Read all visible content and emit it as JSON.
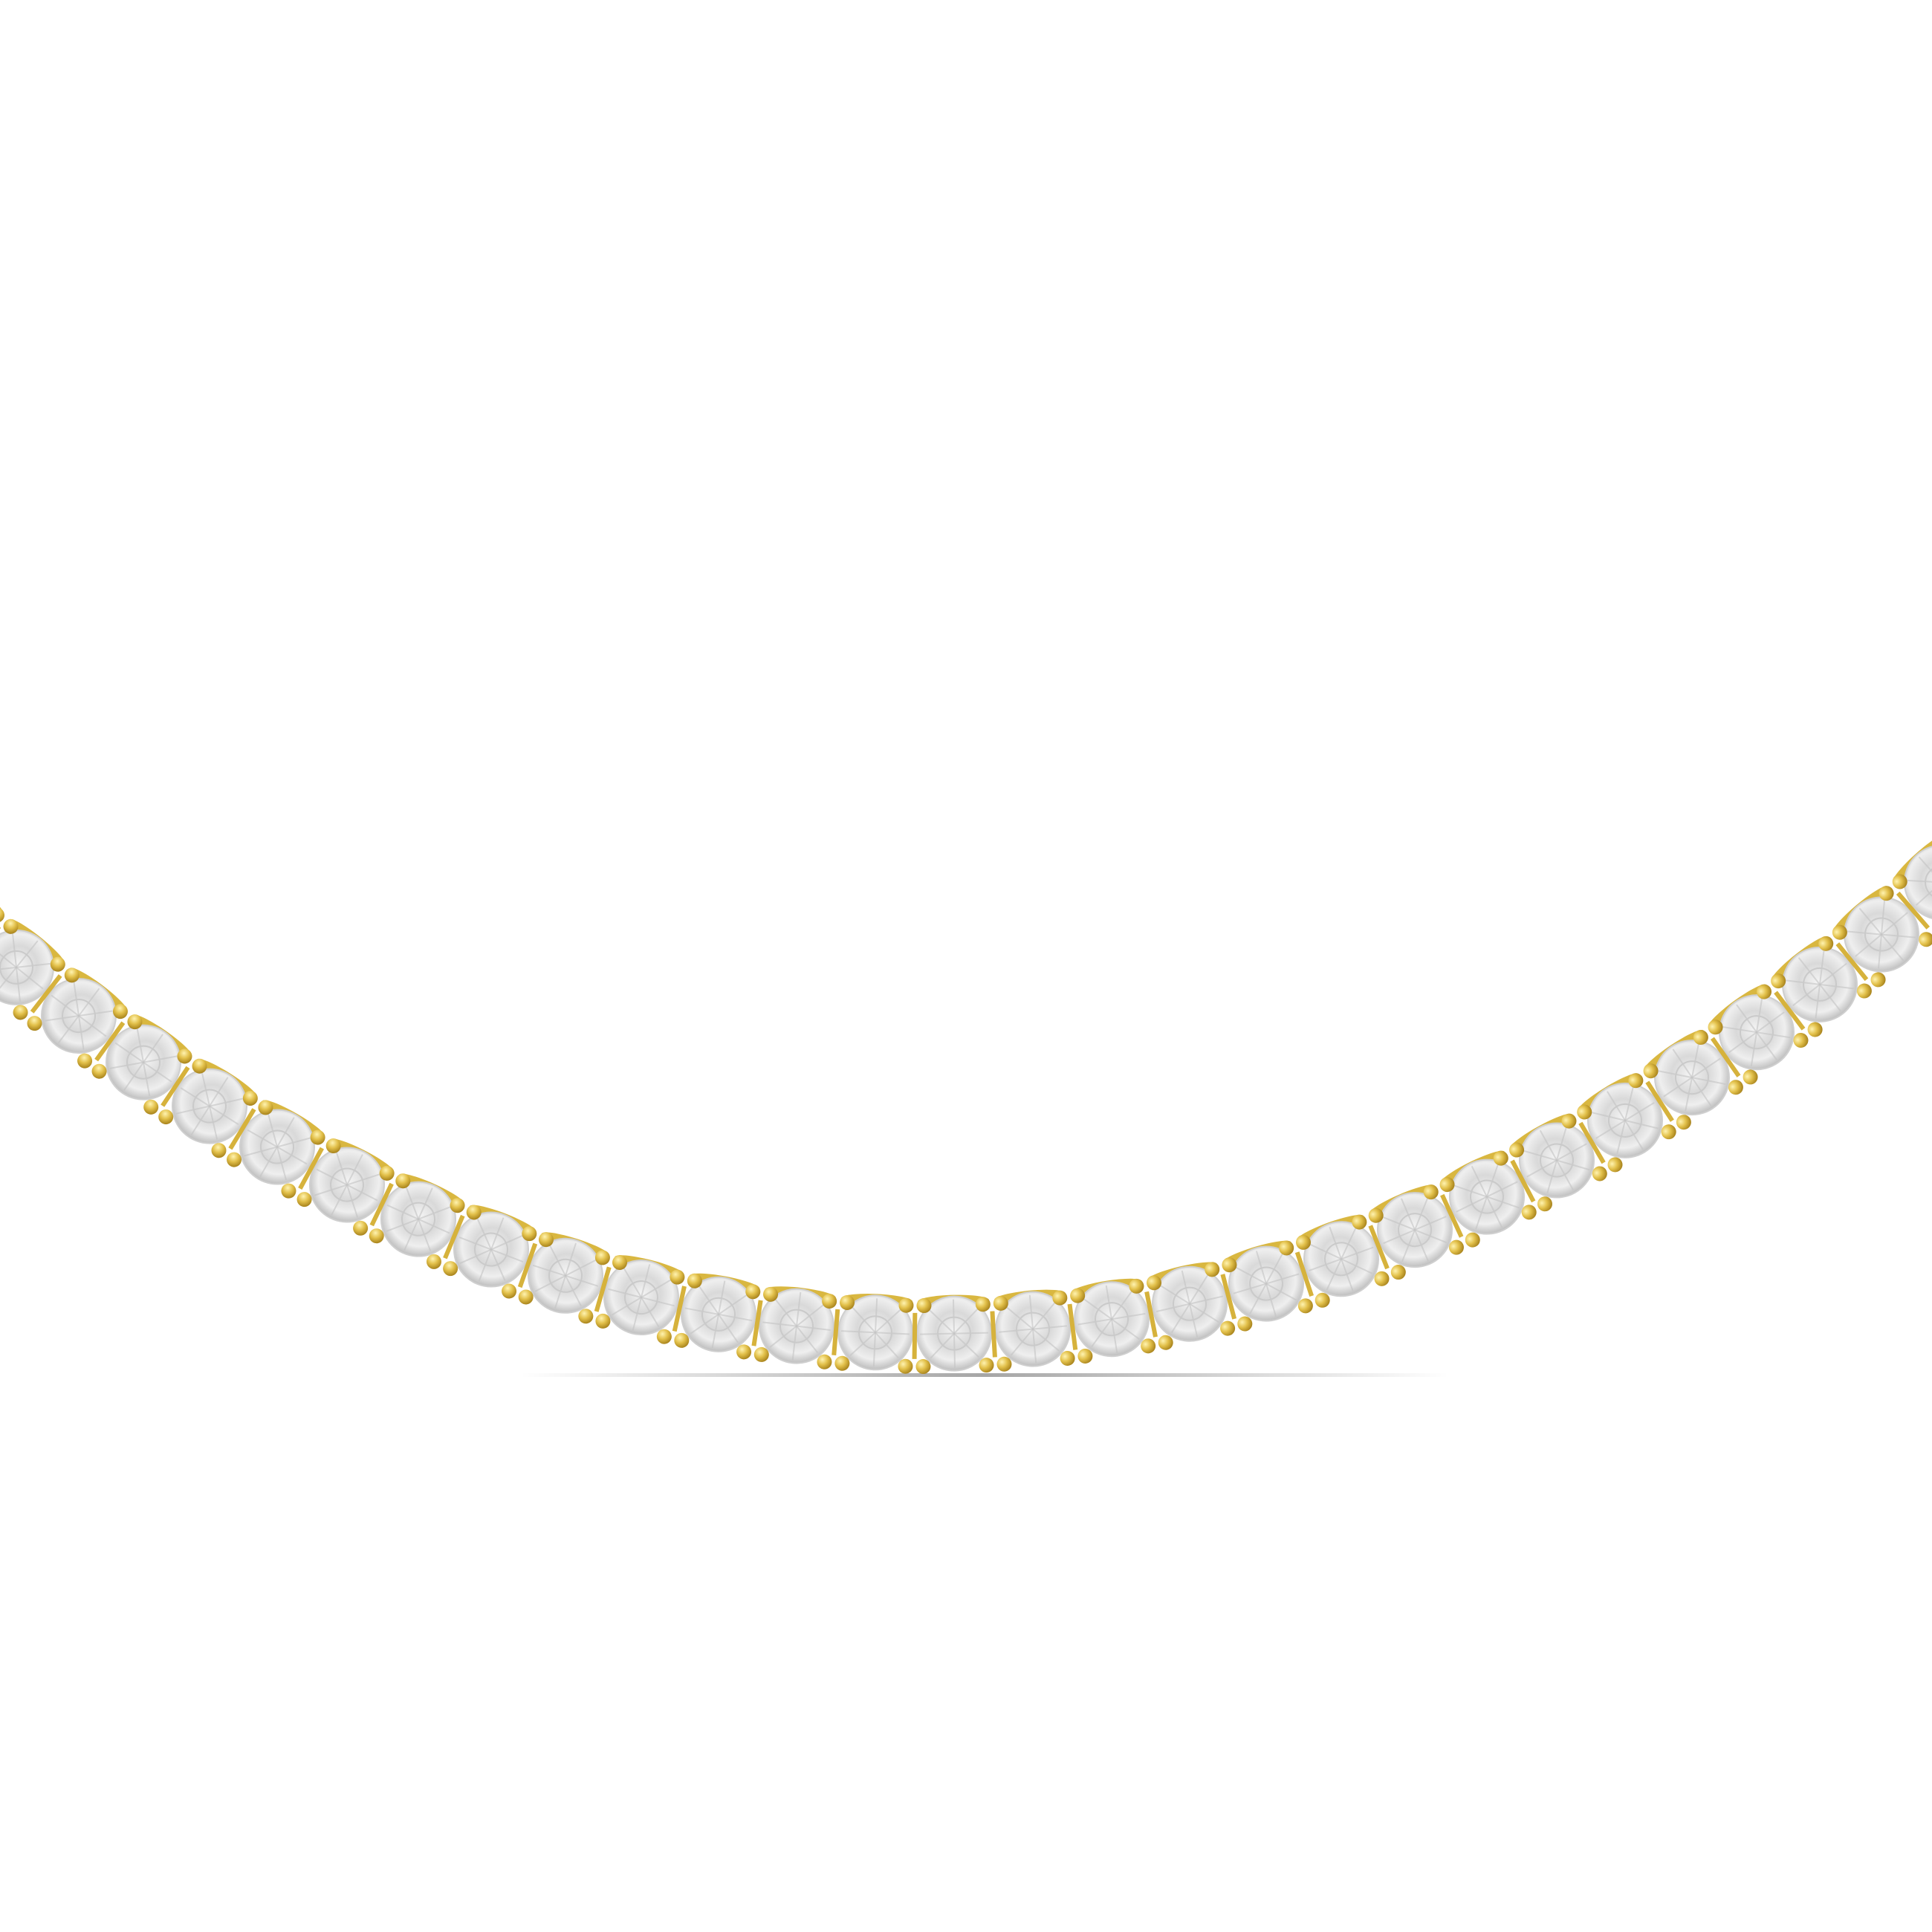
{
  "product": {
    "subject": "tennis-necklace",
    "metal_color": "#e2c04a",
    "metal_highlight": "#fff3b0",
    "stone_color": "#e6e6e6",
    "background": "#ffffff"
  }
}
